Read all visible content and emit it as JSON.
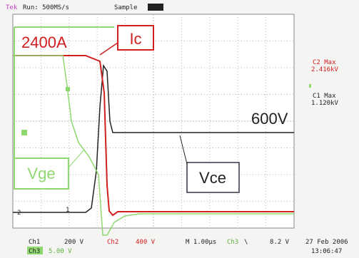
{
  "header": {
    "brand": "Tek",
    "status": "Run: 500MS/s",
    "mode": "Sample"
  },
  "annotations": {
    "current": "2400A",
    "ic": "Ic",
    "voltage": "600V",
    "vce": "Vce",
    "vge": "Vge"
  },
  "markers": {
    "ch2": "2",
    "ch1": "1"
  },
  "readouts": {
    "c2_label": "C2 Max",
    "c2_value": "2.416kV",
    "c1_label": "C1 Max",
    "c1_value": "1.120kV"
  },
  "footer": {
    "ch1": "Ch1",
    "ch1_scale": "200 V",
    "ch2": "Ch2",
    "ch2_scale": "400 V",
    "timebase": "M 1.00µs",
    "trigger_source": "Ch3",
    "trigger_slope": "\\",
    "trigger_level": "8.2 V",
    "ch3": "Ch3",
    "ch3_scale": "5.00 V",
    "date": "27 Feb 2006",
    "time": "13:06:47"
  }
}
